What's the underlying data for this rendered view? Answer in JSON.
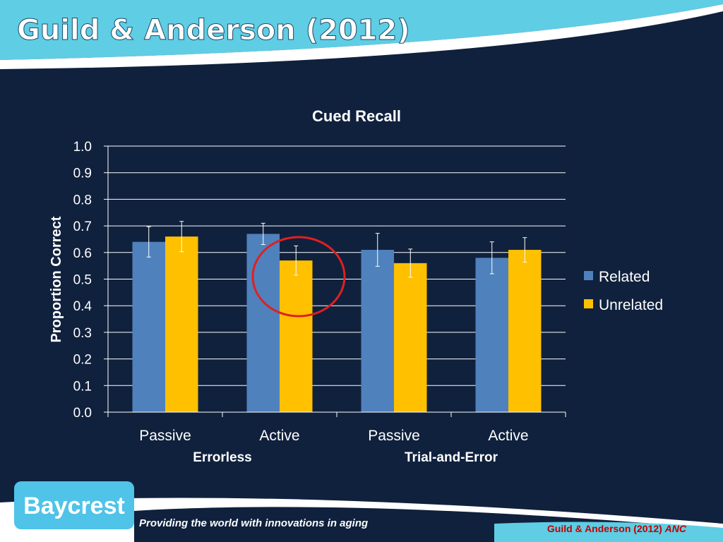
{
  "slide": {
    "title": "Guild & Anderson (2012)",
    "logo_text": "Baycrest",
    "tagline": "Providing the world with innovations in aging",
    "citation": "Guild & Anderson (2012)",
    "citation_journal": "ANC"
  },
  "colors": {
    "background": "#10213d",
    "header": "#5fcde4",
    "related": "#4f81bd",
    "unrelated": "#ffc000",
    "highlight_circle": "#e02020",
    "citation": "#c00000"
  },
  "chart_data": {
    "type": "bar",
    "title": "Cued Recall",
    "ylabel": "Proportion Correct",
    "xlabel": "",
    "ylim": [
      0,
      1.0
    ],
    "yticks": [
      "0.0",
      "0.1",
      "0.2",
      "0.3",
      "0.4",
      "0.5",
      "0.6",
      "0.7",
      "0.8",
      "0.9",
      "1.0"
    ],
    "categories": [
      "Passive",
      "Active",
      "Passive",
      "Active"
    ],
    "groups": [
      {
        "label": "Errorless",
        "categories": [
          0,
          1
        ]
      },
      {
        "label": "Trial-and-Error",
        "categories": [
          2,
          3
        ]
      }
    ],
    "series": [
      {
        "name": "Related",
        "values": [
          0.64,
          0.67,
          0.61,
          0.58
        ],
        "errors": [
          0.057,
          0.04,
          0.062,
          0.06
        ]
      },
      {
        "name": "Unrelated",
        "values": [
          0.66,
          0.57,
          0.56,
          0.61
        ],
        "errors": [
          0.057,
          0.055,
          0.053,
          0.046
        ]
      }
    ],
    "grid": true,
    "legend": "right",
    "highlight": {
      "category": 1,
      "series": 1,
      "shape": "circle"
    }
  }
}
